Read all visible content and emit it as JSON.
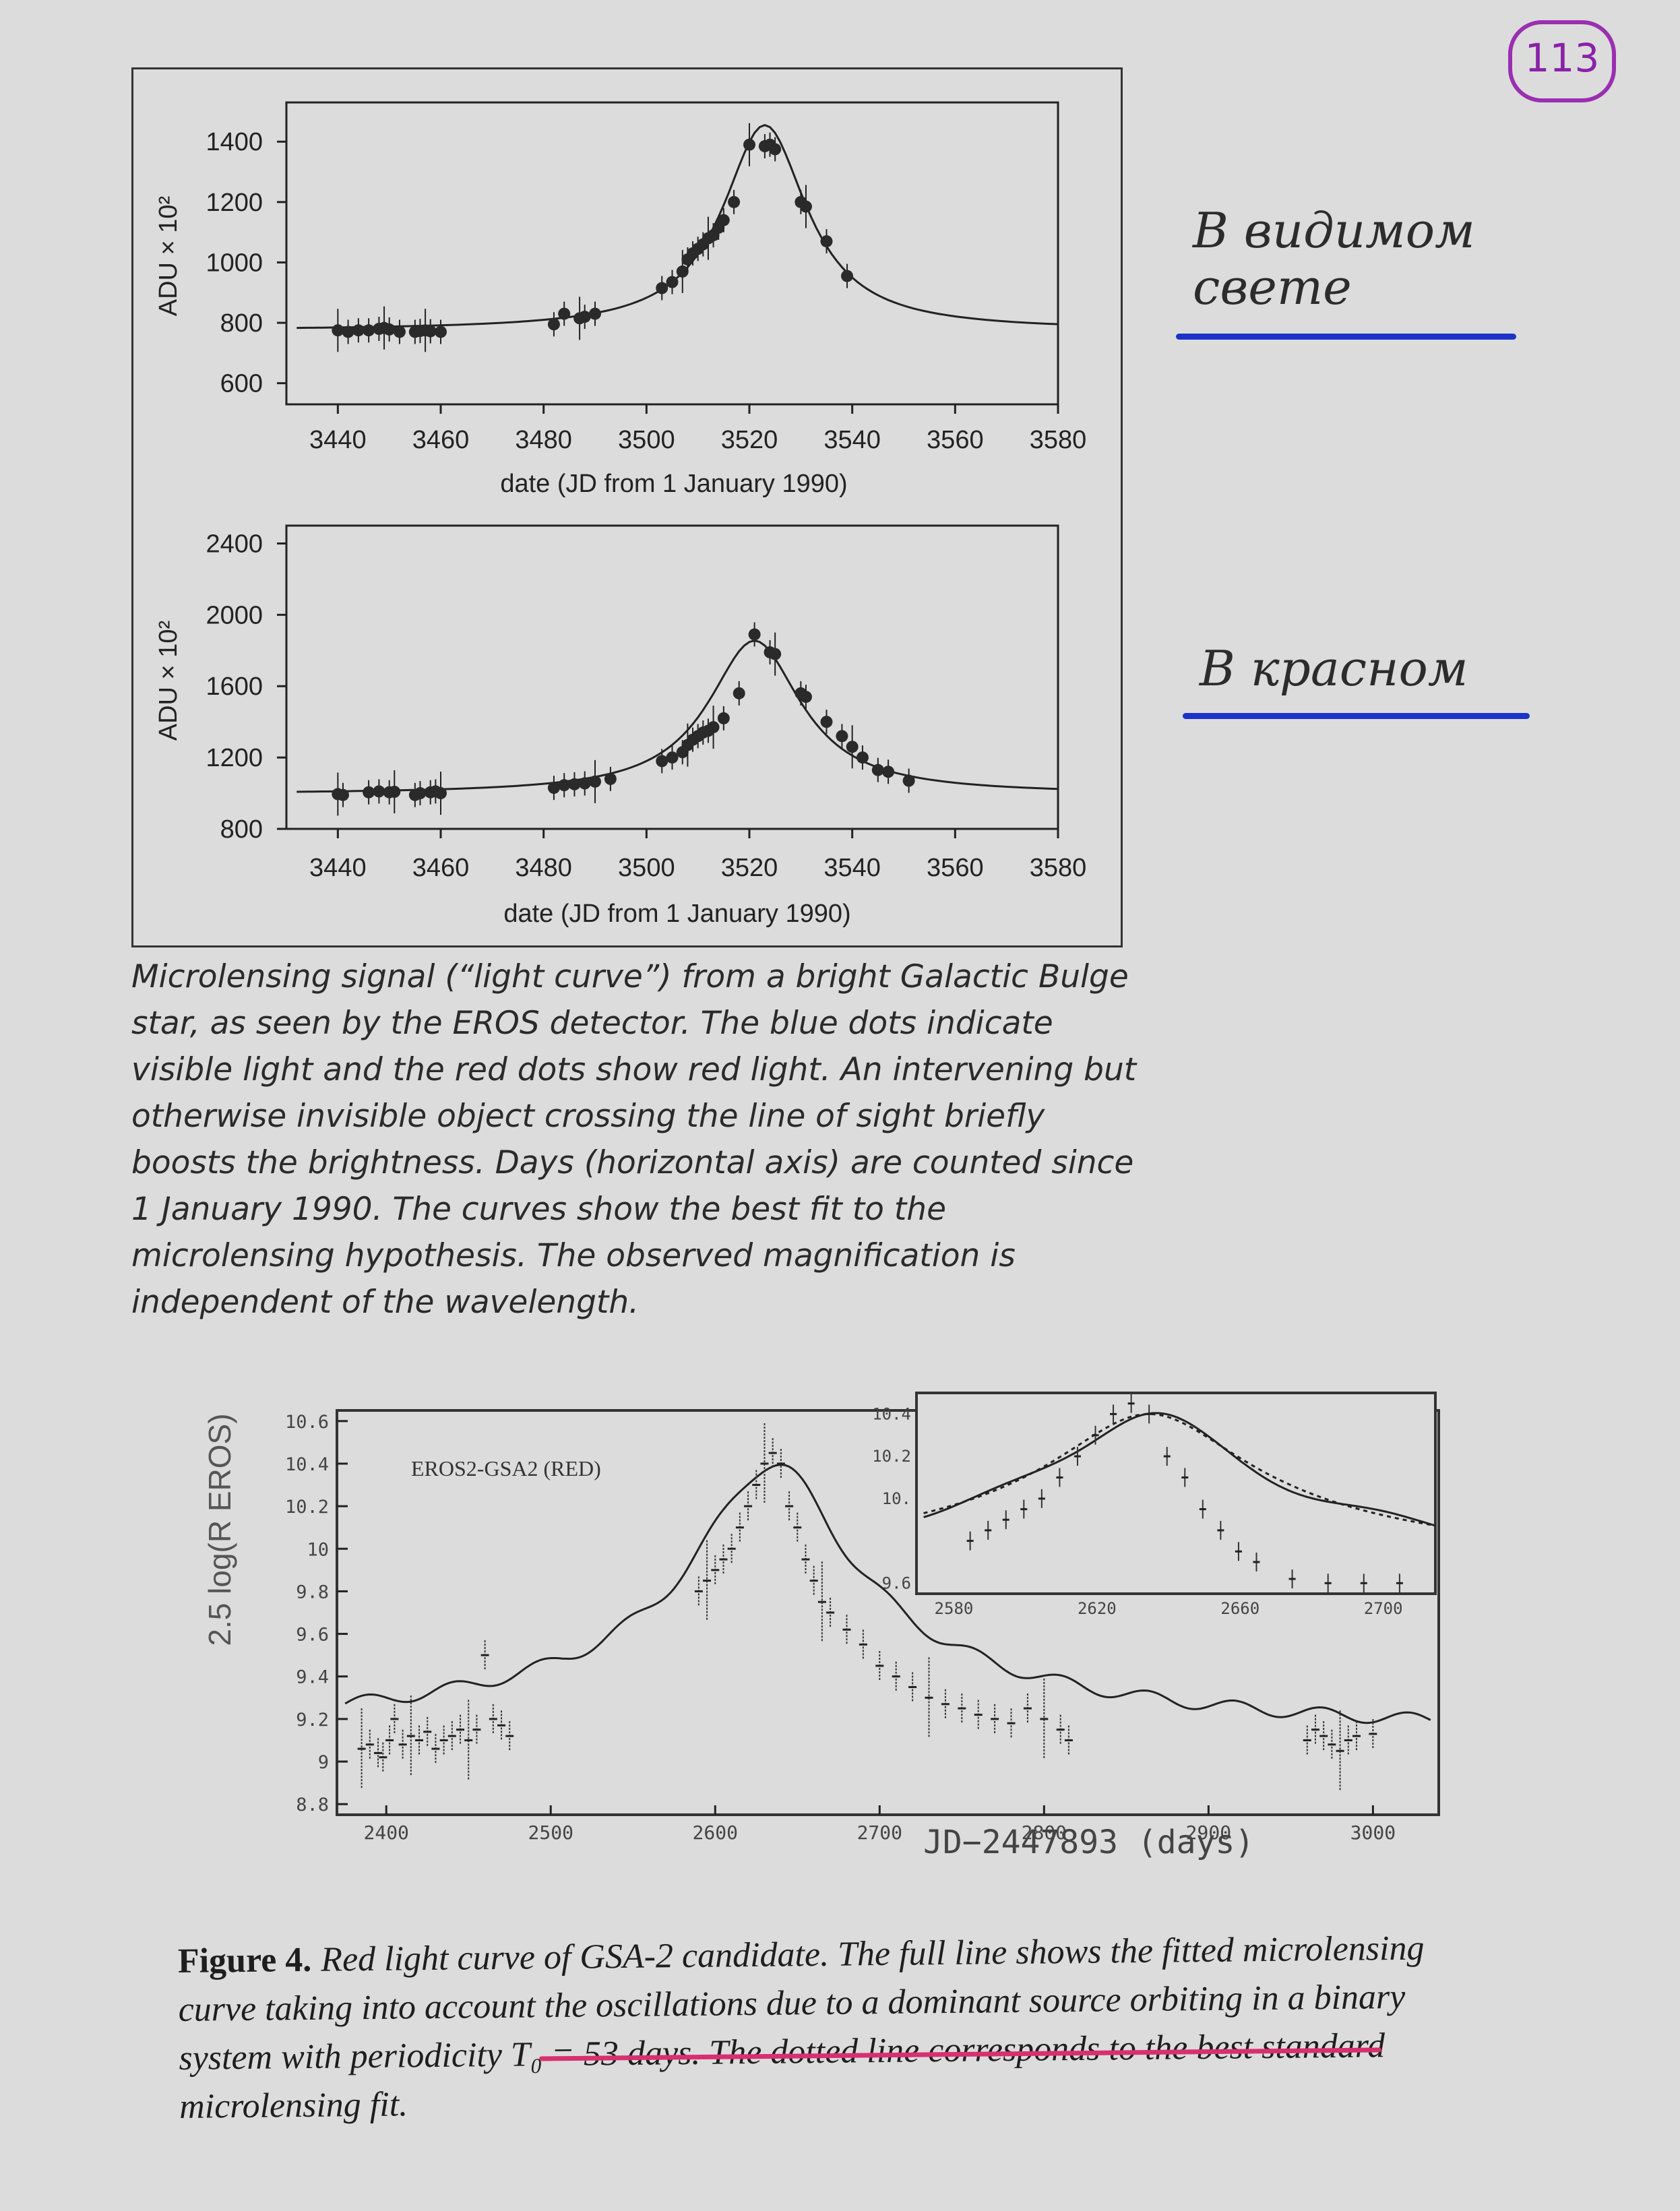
{
  "page_number": "113",
  "top_figure": {
    "panels": [
      {
        "ylabel": "ADU × 10²",
        "xlabel": "date (JD from 1 January 1990)",
        "xticks": [
          "3440",
          "3460",
          "3480",
          "3500",
          "3520",
          "3540",
          "3560",
          "3580"
        ],
        "yticks": [
          "600",
          "800",
          "1000",
          "1200",
          "1400"
        ],
        "xlim": [
          3430,
          3580
        ],
        "ylim": [
          530,
          1530
        ],
        "series_x": [
          3440,
          3442,
          3444,
          3446,
          3448,
          3449,
          3450,
          3452,
          3455,
          3456,
          3457,
          3458,
          3460,
          3482,
          3484,
          3487,
          3488,
          3490,
          3503,
          3505,
          3507,
          3508,
          3509,
          3510,
          3511,
          3512,
          3513,
          3514,
          3515,
          3517,
          3520,
          3523,
          3524,
          3525,
          3530,
          3531,
          3535,
          3539
        ],
        "series_y": [
          775,
          770,
          775,
          775,
          780,
          783,
          778,
          770,
          770,
          773,
          775,
          772,
          770,
          795,
          830,
          815,
          820,
          830,
          915,
          935,
          970,
          1010,
          1030,
          1045,
          1060,
          1080,
          1090,
          1115,
          1140,
          1200,
          1390,
          1385,
          1390,
          1375,
          1200,
          1185,
          1070,
          955
        ]
      },
      {
        "ylabel": "ADU × 10²",
        "xlabel": "date (JD from 1 January 1990)",
        "xticks": [
          "3440",
          "3460",
          "3480",
          "3500",
          "3520",
          "3540",
          "3560",
          "3580"
        ],
        "yticks": [
          "800",
          "1200",
          "1600",
          "2000",
          "2400"
        ],
        "xlim": [
          3430,
          3580
        ],
        "ylim": [
          800,
          2500
        ],
        "series_x": [
          3440,
          3441,
          3446,
          3448,
          3450,
          3451,
          3455,
          3456,
          3458,
          3459,
          3460,
          3482,
          3484,
          3486,
          3488,
          3490,
          3493,
          3503,
          3505,
          3507,
          3508,
          3509,
          3510,
          3511,
          3512,
          3513,
          3515,
          3518,
          3521,
          3524,
          3525,
          3530,
          3531,
          3535,
          3538,
          3540,
          3542,
          3545,
          3547,
          3551
        ],
        "series_y": [
          995,
          990,
          1005,
          1010,
          1005,
          1008,
          990,
          1000,
          1005,
          1010,
          1000,
          1030,
          1045,
          1050,
          1055,
          1065,
          1080,
          1180,
          1200,
          1230,
          1270,
          1300,
          1320,
          1340,
          1350,
          1370,
          1420,
          1560,
          1890,
          1790,
          1780,
          1560,
          1540,
          1400,
          1320,
          1260,
          1200,
          1130,
          1120,
          1070
        ]
      }
    ],
    "caption": "Microlensing signal (“light curve”) from a bright Galactic Bulge star, as seen by the EROS detector. The blue dots indicate visible light and the red dots show red light. An intervening but otherwise invisible object crossing the line of sight briefly boosts the brightness. Days (horizontal axis) are counted since 1 January 1990. The curves show the best fit to the microlensing hypothesis. The observed magnification is independent of the wavelength."
  },
  "annotations": {
    "note_visible": "В видимом свете",
    "note_red": "В красном",
    "underline_color": "#1b33c8"
  },
  "bottom_figure": {
    "ylabel": "2.5 log(R EROS)",
    "legend": "EROS2-GSA2 (RED)",
    "xlabel": "JD−2447893 (days)",
    "yticks": [
      "8.8",
      "9",
      "9.2",
      "9.4",
      "9.6",
      "9.8",
      "10",
      "10.2",
      "10.4",
      "10.6"
    ],
    "xticks": [
      "2400",
      "2500",
      "2600",
      "2700",
      "2800",
      "2900",
      "3000"
    ],
    "inset_xticks": [
      "2580",
      "2620",
      "2660",
      "2700"
    ],
    "inset_yticks": [
      "9.6",
      "10.",
      "10.2",
      "10.4"
    ],
    "series_x": [
      2385,
      2390,
      2395,
      2398,
      2402,
      2405,
      2410,
      2415,
      2420,
      2425,
      2430,
      2435,
      2440,
      2445,
      2450,
      2455,
      2460,
      2465,
      2470,
      2475,
      2590,
      2595,
      2600,
      2605,
      2610,
      2615,
      2620,
      2625,
      2630,
      2635,
      2640,
      2645,
      2650,
      2655,
      2660,
      2665,
      2670,
      2680,
      2690,
      2700,
      2710,
      2720,
      2730,
      2740,
      2750,
      2760,
      2770,
      2780,
      2790,
      2800,
      2810,
      2815,
      2960,
      2965,
      2970,
      2975,
      2980,
      2985,
      2990,
      3000
    ],
    "series_y": [
      9.06,
      9.08,
      9.04,
      9.02,
      9.1,
      9.2,
      9.08,
      9.12,
      9.1,
      9.14,
      9.06,
      9.1,
      9.12,
      9.15,
      9.1,
      9.15,
      9.5,
      9.2,
      9.17,
      9.12,
      9.8,
      9.85,
      9.9,
      9.95,
      10.0,
      10.1,
      10.2,
      10.3,
      10.4,
      10.45,
      10.4,
      10.2,
      10.1,
      9.95,
      9.85,
      9.75,
      9.7,
      9.62,
      9.55,
      9.45,
      9.4,
      9.35,
      9.3,
      9.27,
      9.25,
      9.22,
      9.2,
      9.18,
      9.25,
      9.2,
      9.15,
      9.1,
      9.1,
      9.15,
      9.12,
      9.08,
      9.05,
      9.1,
      9.12,
      9.13
    ],
    "caption_label": "Figure 4.",
    "caption_text": "Red light curve of GSA-2 candidate. The full line shows the fitted microlensing curve taking into account the oscillations due to a dominant source orbiting in a binary system with periodicity T₀ = 53 days. The dotted line corresponds to the best standard microlensing fit.",
    "highlight_color": "#d8306e"
  }
}
